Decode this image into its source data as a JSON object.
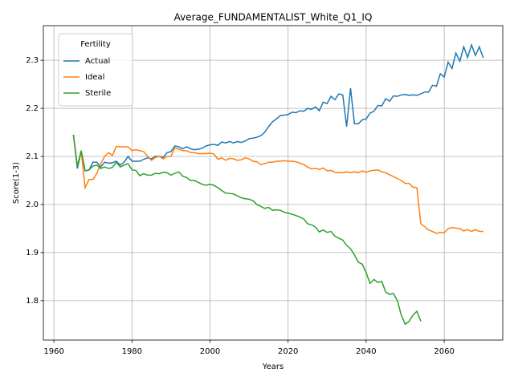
{
  "chart_data": {
    "type": "line",
    "title": "Average_FUNDAMENTALIST_White_Q1_IQ",
    "x_label": "Years",
    "y_label": "Score(1-3)",
    "legend_title": "Fertility",
    "legend_position": "upper left",
    "grid": true,
    "xlim": [
      1957.3,
      2075.0
    ],
    "ylim": [
      1.718,
      2.372
    ],
    "xticks": [
      1960,
      1980,
      2000,
      2020,
      2040,
      2060
    ],
    "yticks": [
      1.8,
      1.9,
      {
        "value": 2,
        "label": "2.0"
      },
      2.1,
      2.2,
      2.3
    ],
    "x": [
      1965,
      1966,
      1967,
      1968,
      1969,
      1970,
      1971,
      1972,
      1973,
      1974,
      1975,
      1976,
      1977,
      1978,
      1979,
      1980,
      1981,
      1982,
      1983,
      1984,
      1985,
      1986,
      1987,
      1988,
      1989,
      1990,
      1991,
      1992,
      1993,
      1994,
      1995,
      1996,
      1997,
      1998,
      1999,
      2000,
      2001,
      2002,
      2003,
      2004,
      2005,
      2006,
      2007,
      2008,
      2009,
      2010,
      2011,
      2012,
      2013,
      2014,
      2015,
      2016,
      2017,
      2018,
      2019,
      2020,
      2021,
      2022,
      2023,
      2024,
      2025,
      2026,
      2027,
      2028,
      2029,
      2030,
      2031,
      2032,
      2033,
      2034,
      2035,
      2036,
      2037,
      2038,
      2039,
      2040,
      2041,
      2042,
      2043,
      2044,
      2045,
      2046,
      2047,
      2048,
      2049,
      2050,
      2051,
      2052,
      2053,
      2054,
      2055,
      2056,
      2057,
      2058,
      2059,
      2060,
      2061,
      2062,
      2063,
      2064,
      2065,
      2066,
      2067,
      2068,
      2069,
      2070
    ],
    "series": [
      {
        "name": "Actual",
        "color": "#1f77b4",
        "values": [
          2.145,
          2.075,
          2.11,
          2.07,
          2.072,
          2.088,
          2.088,
          2.078,
          2.088,
          2.086,
          2.087,
          2.09,
          2.082,
          2.088,
          2.1,
          2.09,
          2.09,
          2.09,
          2.094,
          2.097,
          2.095,
          2.1,
          2.1,
          2.098,
          2.108,
          2.11,
          2.122,
          2.12,
          2.116,
          2.12,
          2.116,
          2.114,
          2.115,
          2.117,
          2.122,
          2.124,
          2.125,
          2.123,
          2.13,
          2.128,
          2.131,
          2.128,
          2.131,
          2.129,
          2.132,
          2.137,
          2.138,
          2.14,
          2.143,
          2.15,
          2.162,
          2.172,
          2.178,
          2.185,
          2.186,
          2.187,
          2.192,
          2.191,
          2.195,
          2.194,
          2.2,
          2.198,
          2.203,
          2.195,
          2.213,
          2.21,
          2.225,
          2.218,
          2.23,
          2.228,
          2.162,
          2.242,
          2.168,
          2.168,
          2.176,
          2.178,
          2.19,
          2.194,
          2.206,
          2.205,
          2.22,
          2.215,
          2.226,
          2.225,
          2.228,
          2.229,
          2.227,
          2.228,
          2.227,
          2.23,
          2.234,
          2.234,
          2.248,
          2.246,
          2.272,
          2.265,
          2.296,
          2.283,
          2.315,
          2.298,
          2.328,
          2.306,
          2.332,
          2.31,
          2.328,
          2.305
        ]
      },
      {
        "name": "Ideal",
        "color": "#ff7f0e",
        "values": [
          2.145,
          2.08,
          2.11,
          2.035,
          2.052,
          2.052,
          2.065,
          2.085,
          2.1,
          2.108,
          2.102,
          2.121,
          2.12,
          2.12,
          2.12,
          2.112,
          2.114,
          2.112,
          2.11,
          2.1,
          2.092,
          2.098,
          2.1,
          2.095,
          2.1,
          2.1,
          2.118,
          2.115,
          2.112,
          2.112,
          2.108,
          2.108,
          2.106,
          2.106,
          2.106,
          2.107,
          2.105,
          2.094,
          2.097,
          2.092,
          2.096,
          2.095,
          2.092,
          2.093,
          2.097,
          2.095,
          2.09,
          2.089,
          2.083,
          2.085,
          2.088,
          2.088,
          2.09,
          2.09,
          2.091,
          2.09,
          2.09,
          2.089,
          2.086,
          2.083,
          2.078,
          2.074,
          2.075,
          2.073,
          2.076,
          2.07,
          2.071,
          2.067,
          2.066,
          2.066,
          2.068,
          2.066,
          2.068,
          2.066,
          2.07,
          2.067,
          2.07,
          2.071,
          2.072,
          2.068,
          2.066,
          2.062,
          2.058,
          2.054,
          2.05,
          2.044,
          2.044,
          2.036,
          2.035,
          1.96,
          1.954,
          1.947,
          1.944,
          1.94,
          1.942,
          1.941,
          1.95,
          1.952,
          1.951,
          1.95,
          1.945,
          1.948,
          1.944,
          1.948,
          1.944,
          1.944
        ]
      },
      {
        "name": "Sterile",
        "color": "#2ca02c",
        "values": [
          2.145,
          2.08,
          2.112,
          2.07,
          2.072,
          2.08,
          2.082,
          2.075,
          2.078,
          2.075,
          2.077,
          2.088,
          2.078,
          2.082,
          2.085,
          2.072,
          2.071,
          2.06,
          2.064,
          2.061,
          2.061,
          2.065,
          2.064,
          2.067,
          2.066,
          2.061,
          2.065,
          2.068,
          2.059,
          2.056,
          2.05,
          2.05,
          2.046,
          2.042,
          2.04,
          2.042,
          2.04,
          2.035,
          2.029,
          2.024,
          2.023,
          2.022,
          2.018,
          2.014,
          2.012,
          2.011,
          2.008,
          2.0,
          1.996,
          1.992,
          1.994,
          1.988,
          1.989,
          1.988,
          1.984,
          1.982,
          1.98,
          1.977,
          1.974,
          1.97,
          1.96,
          1.958,
          1.953,
          1.943,
          1.947,
          1.942,
          1.944,
          1.934,
          1.93,
          1.926,
          1.915,
          1.908,
          1.895,
          1.88,
          1.876,
          1.858,
          1.836,
          1.844,
          1.838,
          1.84,
          1.818,
          1.813,
          1.815,
          1.8,
          1.77,
          1.751,
          1.757,
          1.77,
          1.778,
          1.757,
          null,
          null,
          null,
          null,
          null,
          null,
          null,
          null,
          null,
          null,
          null,
          null,
          null,
          null,
          null,
          null
        ]
      }
    ]
  }
}
